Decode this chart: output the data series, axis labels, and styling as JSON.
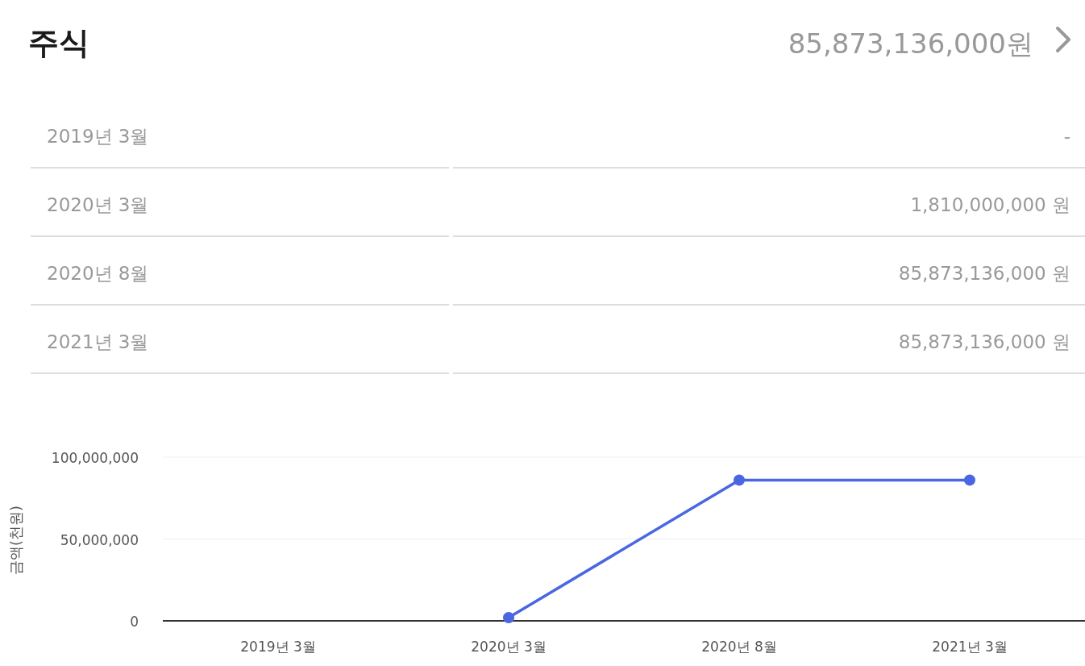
{
  "chart_data": [
    {
      "type": "other",
      "title": "주식",
      "subtitle": "85,873,136,000원",
      "categories": [
        "2019년 3월",
        "2020년 3월",
        "2020년 8월",
        "2021년 3월"
      ],
      "annotations": [
        "-",
        "1,810,000,000 원",
        "85,873,136,000 원",
        "85,873,136,000 원"
      ]
    },
    {
      "type": "line",
      "ylabel": "금액(천원)",
      "categories": [
        "2019년 3월",
        "2020년 3월",
        "2020년 8월",
        "2021년 3월"
      ],
      "values": [
        null,
        2000000,
        86000000,
        86000000
      ],
      "color": "#4a66e0",
      "ylim": [
        0,
        100000000
      ],
      "yticks": [
        0,
        {
          "value": 50000000,
          "label": "50,000,000"
        },
        {
          "value": 100000000,
          "label": "100,000,000"
        }
      ],
      "grid": "y",
      "marker": "circle",
      "line_style": "solid"
    }
  ]
}
